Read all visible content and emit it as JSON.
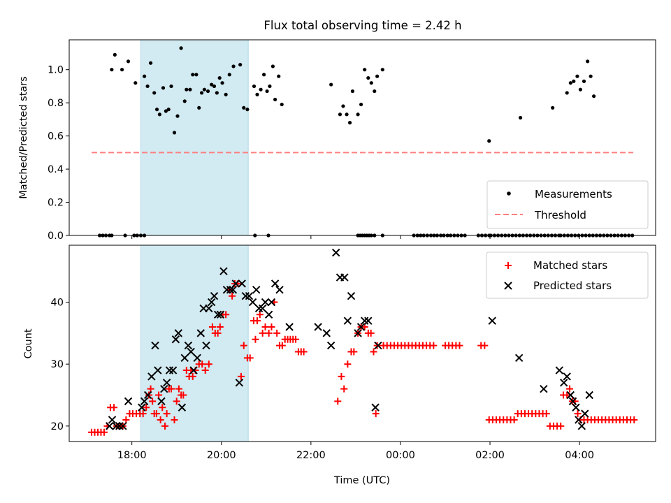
{
  "title": "Flux total observing time = 2.42 h",
  "colors": {
    "band": "#add8e6",
    "threshold": "#ff7f7f",
    "measure": "#000000",
    "matched": "#ff0000",
    "predicted": "#000000"
  },
  "chart_data": [
    {
      "type": "scatter",
      "name": "ratio-panel",
      "ylabel": "Matched/Predicted stars",
      "ylim": [
        0,
        1.18
      ],
      "yticks": [
        0.0,
        0.2,
        0.4,
        0.6,
        0.8,
        1.0
      ],
      "ytick_labels": [
        "0.0",
        "0.2",
        "0.4",
        "0.6",
        "0.8",
        "1.0"
      ],
      "xlim": [
        16.6,
        29.7
      ],
      "observing_band": [
        18.2,
        20.6
      ],
      "legend": {
        "position": "lower-right",
        "measurements": "Measurements",
        "threshold": "Threshold"
      },
      "threshold": {
        "value": 0.5,
        "x_range": [
          17.1,
          29.2
        ]
      },
      "measurements": [
        [
          17.55,
          1.0
        ],
        [
          17.62,
          1.09
        ],
        [
          17.78,
          1.0
        ],
        [
          17.92,
          1.05
        ],
        [
          18.08,
          0.92
        ],
        [
          18.28,
          0.96
        ],
        [
          18.35,
          0.9
        ],
        [
          18.42,
          1.04
        ],
        [
          18.5,
          0.86
        ],
        [
          18.56,
          0.76
        ],
        [
          18.62,
          0.73
        ],
        [
          18.7,
          0.89
        ],
        [
          18.76,
          0.75
        ],
        [
          18.82,
          0.76
        ],
        [
          18.88,
          0.9
        ],
        [
          18.95,
          0.62
        ],
        [
          19.02,
          0.72
        ],
        [
          19.1,
          1.13
        ],
        [
          19.18,
          0.81
        ],
        [
          19.22,
          0.88
        ],
        [
          19.3,
          0.88
        ],
        [
          19.36,
          0.97
        ],
        [
          19.44,
          0.97
        ],
        [
          19.5,
          0.77
        ],
        [
          19.56,
          0.86
        ],
        [
          19.62,
          0.88
        ],
        [
          19.7,
          0.87
        ],
        [
          19.78,
          0.91
        ],
        [
          19.84,
          0.9
        ],
        [
          19.9,
          0.86
        ],
        [
          19.96,
          0.95
        ],
        [
          20.02,
          0.92
        ],
        [
          20.1,
          0.85
        ],
        [
          20.18,
          0.97
        ],
        [
          20.27,
          1.02
        ],
        [
          20.42,
          1.03
        ],
        [
          20.5,
          0.77
        ],
        [
          20.58,
          0.76
        ],
        [
          20.73,
          0.9
        ],
        [
          20.8,
          0.85
        ],
        [
          20.88,
          0.88
        ],
        [
          20.95,
          0.97
        ],
        [
          21.02,
          0.87
        ],
        [
          21.08,
          0.9
        ],
        [
          21.15,
          1.02
        ],
        [
          21.2,
          0.82
        ],
        [
          21.28,
          0.96
        ],
        [
          21.35,
          0.79
        ],
        [
          22.45,
          0.91
        ],
        [
          22.65,
          0.73
        ],
        [
          22.72,
          0.78
        ],
        [
          22.8,
          0.73
        ],
        [
          22.87,
          0.68
        ],
        [
          22.93,
          0.87
        ],
        [
          23.05,
          0.73
        ],
        [
          23.12,
          0.79
        ],
        [
          23.2,
          1.0
        ],
        [
          23.28,
          0.95
        ],
        [
          23.35,
          0.92
        ],
        [
          23.42,
          0.87
        ],
        [
          23.48,
          0.96
        ],
        [
          23.6,
          1.0
        ],
        [
          25.98,
          0.57
        ],
        [
          26.68,
          0.71
        ],
        [
          27.4,
          0.77
        ],
        [
          27.72,
          0.86
        ],
        [
          27.8,
          0.92
        ],
        [
          27.87,
          0.93
        ],
        [
          27.95,
          0.96
        ],
        [
          28.02,
          0.88
        ],
        [
          28.1,
          0.93
        ],
        [
          28.18,
          1.05
        ],
        [
          28.25,
          0.96
        ],
        [
          28.32,
          0.84
        ]
      ],
      "zero_points": [
        17.28,
        17.35,
        17.42,
        17.5,
        17.55,
        17.85,
        18.05,
        18.12,
        18.2,
        18.28,
        20.75,
        21.05,
        23.05,
        23.1,
        23.15,
        23.2,
        23.25,
        23.3,
        23.35,
        23.42,
        23.6,
        24.3,
        24.38,
        24.45,
        24.52,
        24.6,
        24.68,
        24.75,
        24.82,
        24.9,
        24.97,
        25.05,
        25.12,
        25.2,
        25.28,
        25.36,
        25.44,
        25.74,
        25.82,
        25.9,
        25.98,
        26.02,
        26.1,
        26.18,
        26.26,
        26.34,
        26.42,
        26.5,
        26.58,
        26.66,
        26.74,
        26.82,
        26.9,
        26.98,
        27.06,
        27.14,
        27.22,
        27.3,
        27.38,
        27.46,
        27.54,
        27.58,
        27.66,
        27.74,
        27.82,
        27.9,
        27.98,
        28.06,
        28.14,
        28.22,
        28.3,
        28.38,
        28.46,
        28.54,
        28.62,
        28.7,
        28.78,
        28.86,
        28.94,
        29.02,
        29.1,
        29.18
      ]
    },
    {
      "type": "scatter",
      "name": "count-panel",
      "ylabel": "Count",
      "xlabel": "Time (UTC)",
      "ylim": [
        17.5,
        49.2
      ],
      "yticks": [
        20,
        30,
        40
      ],
      "ytick_labels": [
        "20",
        "30",
        "40"
      ],
      "xlim": [
        16.6,
        29.7
      ],
      "xticks": [
        18,
        20,
        22,
        24,
        26,
        28
      ],
      "xtick_labels": [
        "18:00",
        "20:00",
        "22:00",
        "00:00",
        "02:00",
        "04:00"
      ],
      "observing_band": [
        18.2,
        20.6
      ],
      "legend": {
        "position": "upper-right",
        "matched": "Matched stars",
        "predicted": "Predicted stars"
      },
      "matched": [
        [
          17.1,
          19
        ],
        [
          17.17,
          19
        ],
        [
          17.24,
          19
        ],
        [
          17.31,
          19
        ],
        [
          17.38,
          19
        ],
        [
          17.45,
          20
        ],
        [
          17.52,
          23
        ],
        [
          17.6,
          23
        ],
        [
          17.66,
          20
        ],
        [
          17.73,
          20
        ],
        [
          17.8,
          20
        ],
        [
          17.87,
          21
        ],
        [
          17.95,
          22
        ],
        [
          18.02,
          22
        ],
        [
          18.1,
          22
        ],
        [
          18.18,
          22
        ],
        [
          18.25,
          22
        ],
        [
          18.32,
          23
        ],
        [
          18.38,
          25
        ],
        [
          18.42,
          26
        ],
        [
          18.46,
          24
        ],
        [
          18.5,
          22
        ],
        [
          18.55,
          22
        ],
        [
          18.6,
          25
        ],
        [
          18.64,
          21
        ],
        [
          18.68,
          23
        ],
        [
          18.74,
          20
        ],
        [
          18.78,
          22
        ],
        [
          18.83,
          26
        ],
        [
          18.88,
          26
        ],
        [
          18.95,
          21
        ],
        [
          19.0,
          24
        ],
        [
          19.05,
          26
        ],
        [
          19.1,
          25
        ],
        [
          19.15,
          25
        ],
        [
          19.22,
          29
        ],
        [
          19.28,
          28
        ],
        [
          19.32,
          29
        ],
        [
          19.36,
          28
        ],
        [
          19.42,
          29
        ],
        [
          19.5,
          30
        ],
        [
          19.57,
          30
        ],
        [
          19.64,
          29
        ],
        [
          19.72,
          30
        ],
        [
          19.8,
          36
        ],
        [
          19.86,
          35
        ],
        [
          19.92,
          35
        ],
        [
          19.97,
          36
        ],
        [
          20.03,
          38
        ],
        [
          20.1,
          38
        ],
        [
          20.18,
          42
        ],
        [
          20.24,
          41
        ],
        [
          20.3,
          43
        ],
        [
          20.37,
          43
        ],
        [
          20.44,
          28
        ],
        [
          20.5,
          33
        ],
        [
          20.58,
          31
        ],
        [
          20.64,
          31
        ],
        [
          20.72,
          37
        ],
        [
          20.76,
          34
        ],
        [
          20.8,
          37
        ],
        [
          20.86,
          38
        ],
        [
          20.92,
          35
        ],
        [
          20.98,
          36
        ],
        [
          21.06,
          35
        ],
        [
          21.12,
          36
        ],
        [
          21.18,
          40
        ],
        [
          21.24,
          35
        ],
        [
          21.3,
          33
        ],
        [
          21.36,
          33
        ],
        [
          21.42,
          34
        ],
        [
          21.48,
          34
        ],
        [
          21.54,
          34
        ],
        [
          21.6,
          34
        ],
        [
          21.66,
          34
        ],
        [
          21.72,
          32
        ],
        [
          21.78,
          32
        ],
        [
          21.84,
          32
        ],
        [
          22.6,
          24
        ],
        [
          22.68,
          28
        ],
        [
          22.74,
          26
        ],
        [
          22.82,
          30
        ],
        [
          22.9,
          32
        ],
        [
          22.96,
          32
        ],
        [
          23.05,
          35
        ],
        [
          23.12,
          36
        ],
        [
          23.2,
          36
        ],
        [
          23.28,
          35
        ],
        [
          23.34,
          35
        ],
        [
          23.4,
          32
        ],
        [
          23.48,
          33
        ],
        [
          23.45,
          22
        ],
        [
          23.62,
          33
        ],
        [
          23.7,
          33
        ],
        [
          23.78,
          33
        ],
        [
          23.86,
          33
        ],
        [
          23.94,
          33
        ],
        [
          24.02,
          33
        ],
        [
          24.1,
          33
        ],
        [
          24.18,
          33
        ],
        [
          24.26,
          33
        ],
        [
          24.34,
          33
        ],
        [
          24.42,
          33
        ],
        [
          24.5,
          33
        ],
        [
          24.58,
          33
        ],
        [
          24.66,
          33
        ],
        [
          24.74,
          33
        ],
        [
          25.0,
          33
        ],
        [
          25.08,
          33
        ],
        [
          25.16,
          33
        ],
        [
          25.24,
          33
        ],
        [
          25.32,
          33
        ],
        [
          25.8,
          33
        ],
        [
          25.88,
          33
        ],
        [
          25.98,
          21
        ],
        [
          26.06,
          21
        ],
        [
          26.14,
          21
        ],
        [
          26.22,
          21
        ],
        [
          26.3,
          21
        ],
        [
          26.38,
          21
        ],
        [
          26.46,
          21
        ],
        [
          26.54,
          21
        ],
        [
          26.62,
          22
        ],
        [
          26.7,
          22
        ],
        [
          26.78,
          22
        ],
        [
          26.86,
          22
        ],
        [
          26.94,
          22
        ],
        [
          27.02,
          22
        ],
        [
          27.1,
          22
        ],
        [
          27.18,
          22
        ],
        [
          27.26,
          22
        ],
        [
          27.34,
          20
        ],
        [
          27.42,
          20
        ],
        [
          27.5,
          20
        ],
        [
          27.58,
          20
        ],
        [
          27.64,
          25
        ],
        [
          27.72,
          25
        ],
        [
          27.78,
          26
        ],
        [
          27.84,
          24
        ],
        [
          27.9,
          24
        ],
        [
          27.96,
          22
        ],
        [
          28.02,
          21
        ],
        [
          28.1,
          21
        ],
        [
          28.18,
          21
        ],
        [
          28.26,
          21
        ],
        [
          28.34,
          21
        ],
        [
          28.42,
          21
        ],
        [
          28.5,
          21
        ],
        [
          28.58,
          21
        ],
        [
          28.66,
          21
        ],
        [
          28.74,
          21
        ],
        [
          28.82,
          21
        ],
        [
          28.9,
          21
        ],
        [
          28.98,
          21
        ],
        [
          29.06,
          21
        ],
        [
          29.14,
          21
        ],
        [
          29.22,
          21
        ]
      ],
      "predicted": [
        [
          17.5,
          20
        ],
        [
          17.56,
          21
        ],
        [
          17.65,
          20
        ],
        [
          17.72,
          20
        ],
        [
          17.8,
          20
        ],
        [
          17.92,
          24
        ],
        [
          18.22,
          23
        ],
        [
          18.28,
          24
        ],
        [
          18.36,
          25
        ],
        [
          18.44,
          28
        ],
        [
          18.52,
          33
        ],
        [
          18.58,
          29
        ],
        [
          18.66,
          24
        ],
        [
          18.72,
          26
        ],
        [
          18.78,
          27
        ],
        [
          18.84,
          29
        ],
        [
          18.92,
          29
        ],
        [
          18.98,
          34
        ],
        [
          19.04,
          35
        ],
        [
          19.12,
          23
        ],
        [
          19.18,
          31
        ],
        [
          19.26,
          33
        ],
        [
          19.32,
          32
        ],
        [
          19.38,
          29
        ],
        [
          19.46,
          31
        ],
        [
          19.54,
          35
        ],
        [
          19.6,
          39
        ],
        [
          19.66,
          33
        ],
        [
          19.72,
          39
        ],
        [
          19.78,
          40
        ],
        [
          19.84,
          41
        ],
        [
          19.92,
          38
        ],
        [
          19.98,
          38
        ],
        [
          20.05,
          45
        ],
        [
          20.12,
          42
        ],
        [
          20.2,
          42
        ],
        [
          20.26,
          42
        ],
        [
          20.32,
          43
        ],
        [
          20.4,
          27
        ],
        [
          20.46,
          43
        ],
        [
          20.54,
          41
        ],
        [
          20.62,
          41
        ],
        [
          20.7,
          40
        ],
        [
          20.78,
          42
        ],
        [
          20.84,
          39
        ],
        [
          20.92,
          39
        ],
        [
          20.98,
          40
        ],
        [
          21.06,
          38
        ],
        [
          21.12,
          40
        ],
        [
          21.2,
          43
        ],
        [
          21.3,
          42
        ],
        [
          21.52,
          36
        ],
        [
          22.16,
          36
        ],
        [
          22.35,
          35
        ],
        [
          22.45,
          33
        ],
        [
          22.56,
          48
        ],
        [
          22.65,
          44
        ],
        [
          22.75,
          44
        ],
        [
          22.82,
          37
        ],
        [
          22.9,
          41
        ],
        [
          23.05,
          35
        ],
        [
          23.12,
          36
        ],
        [
          23.2,
          37
        ],
        [
          23.28,
          37
        ],
        [
          23.44,
          23
        ],
        [
          23.5,
          33
        ],
        [
          26.05,
          37
        ],
        [
          26.65,
          31
        ],
        [
          27.2,
          26
        ],
        [
          27.55,
          29
        ],
        [
          27.65,
          27
        ],
        [
          27.72,
          28
        ],
        [
          27.8,
          25
        ],
        [
          27.85,
          24
        ],
        [
          27.92,
          23
        ],
        [
          27.98,
          21
        ],
        [
          28.05,
          20
        ],
        [
          28.12,
          22
        ],
        [
          28.22,
          25
        ]
      ]
    }
  ]
}
